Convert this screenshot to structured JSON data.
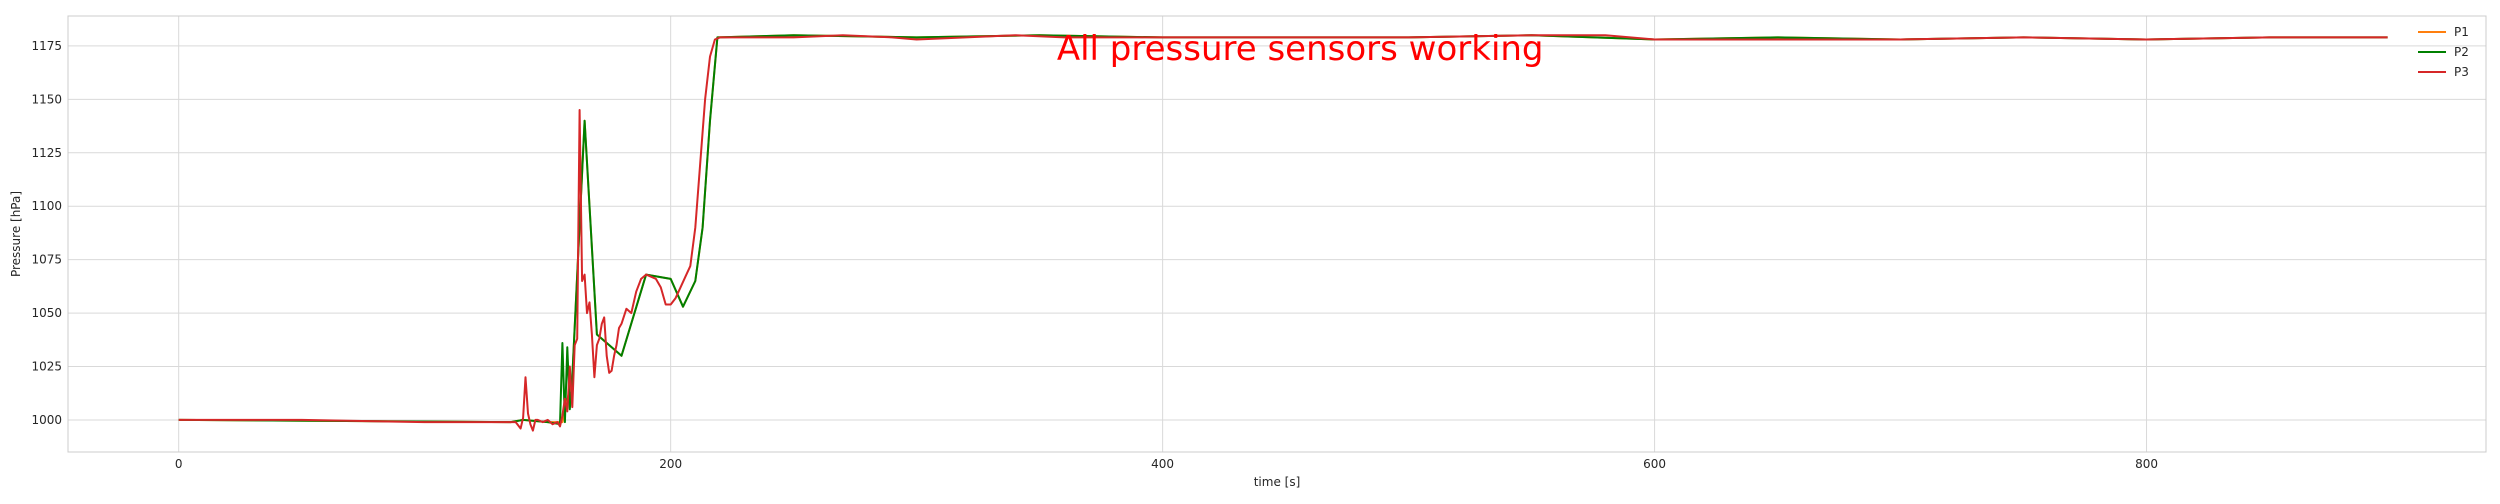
{
  "chart_data": {
    "type": "line",
    "annotation": "All pressure sensors working",
    "xlabel": "time [s]",
    "ylabel": "Pressure [hPa]",
    "xlim": [
      -45,
      938
    ],
    "ylim": [
      985,
      1189
    ],
    "xticks": [
      0,
      200,
      400,
      600,
      800
    ],
    "yticks": [
      1000,
      1025,
      1050,
      1075,
      1100,
      1125,
      1150,
      1175
    ],
    "grid": true,
    "legend_position": "top-right",
    "colors": {
      "P1": "#ff7f0e",
      "P2": "#008000",
      "P3": "#d62728",
      "annotation": "#ff0000",
      "grid": "#d9d9d9"
    },
    "series": [
      {
        "name": "P1",
        "x": [
          0,
          135,
          140,
          150,
          156,
          160,
          165,
          170,
          180,
          190,
          200,
          205,
          210,
          213,
          216,
          219,
          250,
          300,
          350,
          400,
          450,
          500,
          550,
          600,
          650,
          700,
          750,
          800,
          850,
          898
        ],
        "y": [
          1000,
          999,
          1000,
          999,
          999,
          1020,
          1140,
          1040,
          1030,
          1068,
          1066,
          1053,
          1065,
          1090,
          1140,
          1179,
          1180,
          1179,
          1180,
          1179,
          1179,
          1179,
          1180,
          1178,
          1179,
          1178,
          1179,
          1178,
          1179,
          1179
        ]
      },
      {
        "name": "P2",
        "x": [
          0,
          135,
          140,
          150,
          155,
          156,
          157,
          158,
          159,
          160,
          165,
          170,
          180,
          190,
          200,
          205,
          210,
          213,
          216,
          219,
          250,
          300,
          350,
          400,
          450,
          500,
          550,
          600,
          650,
          700,
          750,
          800,
          850,
          898
        ],
        "y": [
          1000,
          999,
          1000,
          999,
          998,
          1036,
          999,
          1034,
          1005,
          1020,
          1140,
          1040,
          1030,
          1068,
          1066,
          1053,
          1065,
          1090,
          1140,
          1179,
          1180,
          1179,
          1180,
          1179,
          1179,
          1179,
          1180,
          1178,
          1179,
          1178,
          1179,
          1178,
          1179,
          1179
        ]
      },
      {
        "name": "P3",
        "x": [
          0,
          50,
          100,
          137,
          139,
          140,
          141,
          142,
          143,
          144,
          145,
          146,
          148,
          150,
          152,
          154,
          155,
          156,
          157,
          158,
          159,
          160,
          161,
          162,
          163,
          164,
          165,
          166,
          167,
          168,
          169,
          170,
          171,
          172,
          173,
          174,
          175,
          176,
          177,
          178,
          179,
          180,
          182,
          184,
          186,
          188,
          190,
          192,
          194,
          196,
          198,
          200,
          202,
          204,
          206,
          208,
          210,
          212,
          214,
          216,
          218,
          220,
          230,
          250,
          270,
          290,
          300,
          320,
          340,
          360,
          400,
          450,
          500,
          550,
          580,
          600,
          650,
          700,
          750,
          800,
          850,
          898
        ],
        "y": [
          1000,
          1000,
          999,
          999,
          996,
          1001,
          1020,
          1003,
          998,
          995,
          1000,
          1000,
          999,
          1000,
          998,
          999,
          997,
          1002,
          1010,
          1004,
          1025,
          1006,
          1035,
          1038,
          1145,
          1065,
          1068,
          1050,
          1055,
          1040,
          1020,
          1035,
          1038,
          1045,
          1048,
          1030,
          1022,
          1023,
          1030,
          1035,
          1043,
          1045,
          1052,
          1050,
          1060,
          1066,
          1068,
          1067,
          1066,
          1062,
          1054,
          1054,
          1057,
          1062,
          1067,
          1072,
          1090,
          1120,
          1150,
          1170,
          1178,
          1179,
          1179,
          1179,
          1180,
          1179,
          1178,
          1179,
          1180,
          1179,
          1179,
          1179,
          1179,
          1180,
          1180,
          1178,
          1178,
          1178,
          1179,
          1178,
          1179,
          1179
        ]
      }
    ]
  }
}
